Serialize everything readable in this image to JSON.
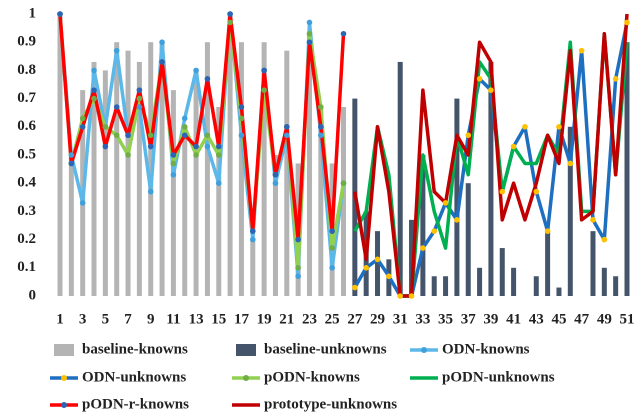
{
  "chart_data": {
    "type": "bar-line",
    "categories": [
      1,
      null,
      3,
      null,
      5,
      null,
      7,
      null,
      9,
      null,
      11,
      null,
      13,
      null,
      15,
      null,
      17,
      null,
      19,
      null,
      21,
      null,
      23,
      null,
      25,
      null,
      27,
      null,
      29,
      null,
      31,
      null,
      33,
      null,
      35,
      null,
      37,
      null,
      39,
      null,
      41,
      null,
      43,
      null,
      45,
      null,
      47,
      null,
      49,
      null,
      51
    ],
    "ylim": [
      0,
      1
    ],
    "yticks": [
      0,
      0.1,
      0.2,
      0.3,
      0.4,
      0.5,
      0.6,
      0.7,
      0.8,
      0.9,
      1
    ],
    "series": [
      {
        "name": "baseline-knowns",
        "kind": "bar",
        "color": "#b4b4b4",
        "values": [
          1,
          0.5,
          0.73,
          0.83,
          0.8,
          0.9,
          0.87,
          0.83,
          0.9,
          0.9,
          0.73,
          0.6,
          0.8,
          0.9,
          0.67,
          1,
          0.9,
          0.2,
          0.9,
          0.5,
          0.87,
          0.47,
          0.93,
          0.67,
          0.47,
          0.67,
          null,
          null,
          null,
          null,
          null,
          null,
          null,
          null,
          null,
          null,
          null,
          null,
          null,
          null,
          null,
          null,
          null,
          null,
          null,
          null,
          null,
          null,
          null,
          null,
          null
        ]
      },
      {
        "name": "baseline-unknowns",
        "kind": "bar",
        "color": "#44546a",
        "values": [
          null,
          null,
          null,
          null,
          null,
          null,
          null,
          null,
          null,
          null,
          null,
          null,
          null,
          null,
          null,
          null,
          null,
          null,
          null,
          null,
          null,
          null,
          null,
          null,
          null,
          null,
          0.7,
          0.3,
          0.23,
          0.13,
          0.83,
          0.27,
          0.5,
          0.07,
          0.07,
          0.7,
          0.4,
          0.1,
          0.83,
          0.17,
          0.1,
          0,
          0.07,
          0.23,
          0.03,
          0.6,
          0,
          0.23,
          0.1,
          0.07,
          0.9
        ]
      },
      {
        "name": "ODN-knowns",
        "kind": "line",
        "color": "#5bb8e8",
        "marker": "#3fa0dc",
        "values": [
          1,
          0.5,
          0.33,
          0.8,
          0.6,
          0.87,
          0.57,
          0.67,
          0.37,
          0.9,
          0.43,
          0.63,
          0.8,
          0.53,
          0.4,
          1,
          0.57,
          0.2,
          0.8,
          0.4,
          0.57,
          0.07,
          0.97,
          0.57,
          0.1,
          0.4,
          null,
          null,
          null,
          null,
          null,
          null,
          null,
          null,
          null,
          null,
          null,
          null,
          null,
          null,
          null,
          null,
          null,
          null,
          null,
          null,
          null,
          null,
          null,
          null,
          null
        ]
      },
      {
        "name": "ODN-unknowns",
        "kind": "line",
        "color": "#1f6fc0",
        "marker": "#ffc000",
        "values": [
          null,
          null,
          null,
          null,
          null,
          null,
          null,
          null,
          null,
          null,
          null,
          null,
          null,
          null,
          null,
          null,
          null,
          null,
          null,
          null,
          null,
          null,
          null,
          null,
          null,
          null,
          0.03,
          0.1,
          0.13,
          0.07,
          0,
          0,
          0.17,
          0.23,
          0.33,
          0.27,
          0.57,
          0.77,
          0.73,
          0.37,
          0.53,
          0.6,
          0.37,
          0.23,
          0.6,
          0.47,
          0.87,
          0.27,
          0.2,
          0.77,
          0.97
        ]
      },
      {
        "name": "pODN-knowns",
        "kind": "line",
        "color": "#92d050",
        "marker": "#70ad47",
        "values": [
          1,
          0.47,
          0.63,
          0.7,
          0.6,
          0.57,
          0.5,
          0.7,
          0.57,
          0.83,
          0.47,
          0.6,
          0.5,
          0.57,
          0.5,
          0.97,
          0.63,
          0.23,
          0.73,
          0.43,
          0.6,
          0.1,
          0.93,
          0.67,
          0.17,
          0.4,
          null,
          null,
          null,
          null,
          null,
          null,
          null,
          null,
          null,
          null,
          null,
          null,
          null,
          null,
          null,
          null,
          null,
          null,
          null,
          null,
          null,
          null,
          null,
          null,
          null
        ]
      },
      {
        "name": "pODN-unknowns",
        "kind": "line",
        "color": "#00b050",
        "values": [
          null,
          null,
          null,
          null,
          null,
          null,
          null,
          null,
          null,
          null,
          null,
          null,
          null,
          null,
          null,
          null,
          null,
          null,
          null,
          null,
          null,
          null,
          null,
          null,
          null,
          null,
          0.23,
          0.3,
          0.6,
          0.43,
          0,
          0,
          0.5,
          0.3,
          0.17,
          0.57,
          0.43,
          0.83,
          0.77,
          0.37,
          0.53,
          0.47,
          0.47,
          0.57,
          0.5,
          0.9,
          0.3,
          0.3,
          0.93,
          0.43,
          0.9
        ]
      },
      {
        "name": "pODN-r-knowns",
        "kind": "line",
        "color": "#ff0000",
        "marker": "#2e64b4",
        "values": [
          1,
          0.47,
          0.6,
          0.73,
          0.53,
          0.67,
          0.57,
          0.73,
          0.53,
          0.83,
          0.5,
          0.57,
          0.53,
          0.77,
          0.53,
          1,
          0.67,
          0.23,
          0.8,
          0.43,
          0.6,
          0.2,
          0.9,
          0.6,
          0.23,
          0.93,
          null,
          null,
          null,
          null,
          null,
          null,
          null,
          null,
          null,
          null,
          null,
          null,
          null,
          null,
          null,
          null,
          null,
          null,
          null,
          null,
          null,
          null,
          null,
          null,
          null
        ]
      },
      {
        "name": "prototype-unknowns",
        "kind": "line",
        "color": "#c00000",
        "values": [
          null,
          null,
          null,
          null,
          null,
          null,
          null,
          null,
          null,
          null,
          null,
          null,
          null,
          null,
          null,
          null,
          null,
          null,
          null,
          null,
          null,
          null,
          null,
          null,
          null,
          null,
          0.37,
          0.13,
          0.6,
          0.37,
          0,
          0,
          0.73,
          0.37,
          0.33,
          0.57,
          0.5,
          0.9,
          0.83,
          0.27,
          0.4,
          0.27,
          0.4,
          0.57,
          0.47,
          0.87,
          0.27,
          0.3,
          0.93,
          0.43,
          1
        ]
      }
    ]
  }
}
